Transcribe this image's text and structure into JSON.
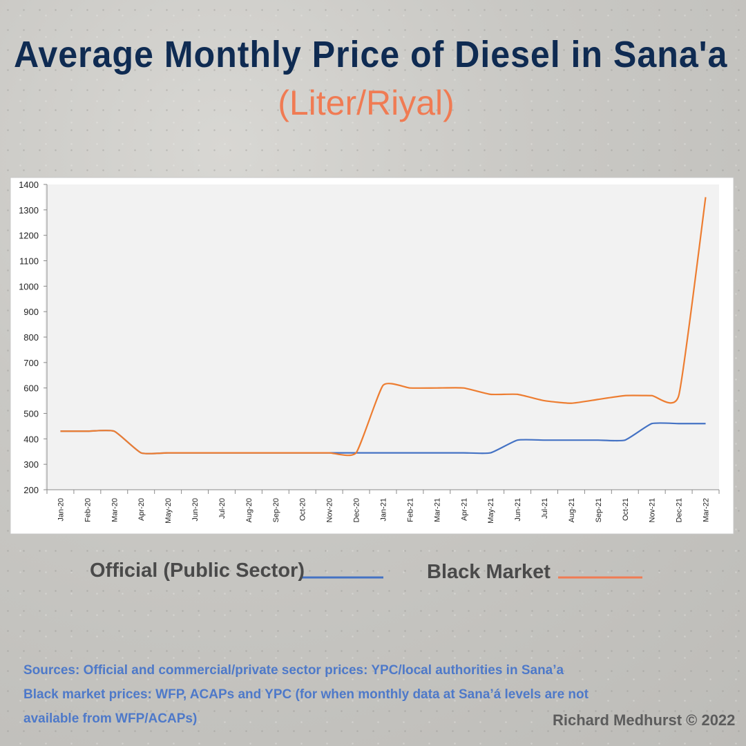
{
  "chart_data": {
    "type": "line",
    "title": "Average Monthly Price of Diesel in Sana'a",
    "subtitle": "(Liter/Riyal)",
    "xlabel": "",
    "ylabel": "",
    "categories": [
      "Jan-20",
      "Feb-20",
      "Mar-20",
      "Apr-20",
      "May-20",
      "Jun-20",
      "Jul-20",
      "Aug-20",
      "Sep-20",
      "Oct-20",
      "Nov-20",
      "Dec-20",
      "Jan-21",
      "Feb-21",
      "Mar-21",
      "Apr-21",
      "May-21",
      "Jun-21",
      "Jul-21",
      "Aug-21",
      "Sep-21",
      "Oct-21",
      "Nov-21",
      "Dec-21",
      "Mar-22"
    ],
    "series": [
      {
        "name": "Official (Public Sector)",
        "color": "#4472c4",
        "values": [
          430,
          430,
          430,
          345,
          345,
          345,
          345,
          345,
          345,
          345,
          345,
          345,
          345,
          345,
          345,
          345,
          345,
          395,
          395,
          395,
          395,
          395,
          460,
          460,
          460
        ]
      },
      {
        "name": "Black Market",
        "color": "#ed7d31",
        "values": [
          430,
          430,
          430,
          345,
          345,
          345,
          345,
          345,
          345,
          345,
          345,
          345,
          610,
          600,
          600,
          600,
          575,
          575,
          550,
          540,
          555,
          570,
          570,
          570,
          1350
        ]
      }
    ],
    "ylim": [
      200,
      1400
    ],
    "yticks": [
      200,
      300,
      400,
      500,
      600,
      700,
      800,
      900,
      1000,
      1100,
      1200,
      1300,
      1400
    ],
    "grid": false,
    "legend_position": "bottom"
  },
  "legend": {
    "official_label": "Official (Public Sector)",
    "black_label": "Black Market"
  },
  "sources": {
    "line1": "Sources: Official and commercial/private sector prices: YPC/local authorities in Sana’a",
    "line2": "Black market prices: WFP, ACAPs and YPC (for when monthly data at Sana’á levels are not",
    "line3": "available from WFP/ACAPs)"
  },
  "credit": "Richard Medhurst © 2022"
}
